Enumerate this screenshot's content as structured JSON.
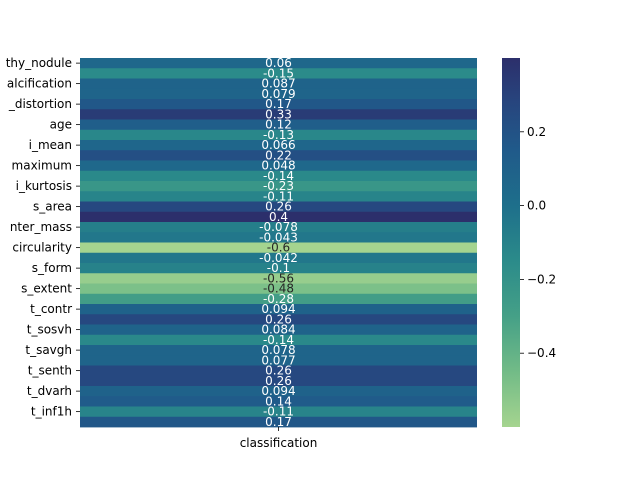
{
  "chart_data": {
    "type": "heatmap",
    "title": "",
    "xlabel": "",
    "ylabel": "",
    "columns": [
      "classification"
    ],
    "rows": [
      {
        "label": "thy_nodule",
        "value": 0.06,
        "text": "0.06"
      },
      {
        "label": "",
        "value": -0.15,
        "text": "-0.15"
      },
      {
        "label": "alcification",
        "value": 0.087,
        "text": "0.087"
      },
      {
        "label": "",
        "value": 0.079,
        "text": "0.079"
      },
      {
        "label": "_distortion",
        "value": 0.17,
        "text": "0.17"
      },
      {
        "label": "",
        "value": 0.33,
        "text": "0.33"
      },
      {
        "label": "age",
        "value": 0.12,
        "text": "0.12"
      },
      {
        "label": "",
        "value": -0.13,
        "text": "-0.13"
      },
      {
        "label": "i_mean",
        "value": 0.066,
        "text": "0.066"
      },
      {
        "label": "",
        "value": 0.22,
        "text": "0.22"
      },
      {
        "label": "maximum",
        "value": 0.048,
        "text": "0.048"
      },
      {
        "label": "",
        "value": -0.14,
        "text": "-0.14"
      },
      {
        "label": "i_kurtosis",
        "value": -0.23,
        "text": "-0.23"
      },
      {
        "label": "",
        "value": -0.11,
        "text": "-0.11"
      },
      {
        "label": "s_area",
        "value": 0.26,
        "text": "0.26"
      },
      {
        "label": "",
        "value": 0.4,
        "text": "0.4"
      },
      {
        "label": "nter_mass",
        "value": -0.078,
        "text": "-0.078"
      },
      {
        "label": "",
        "value": -0.043,
        "text": "-0.043"
      },
      {
        "label": "circularity",
        "value": -0.6,
        "text": "-0.6"
      },
      {
        "label": "",
        "value": -0.042,
        "text": "-0.042"
      },
      {
        "label": "s_form",
        "value": -0.1,
        "text": "-0.1"
      },
      {
        "label": "",
        "value": -0.56,
        "text": "-0.56"
      },
      {
        "label": "s_extent",
        "value": -0.48,
        "text": "-0.48"
      },
      {
        "label": "",
        "value": -0.28,
        "text": "-0.28"
      },
      {
        "label": "t_contr",
        "value": 0.094,
        "text": "0.094"
      },
      {
        "label": "",
        "value": 0.26,
        "text": "0.26"
      },
      {
        "label": "t_sosvh",
        "value": 0.084,
        "text": "0.084"
      },
      {
        "label": "",
        "value": -0.14,
        "text": "-0.14"
      },
      {
        "label": "t_savgh",
        "value": 0.078,
        "text": "0.078"
      },
      {
        "label": "",
        "value": 0.077,
        "text": "0.077"
      },
      {
        "label": "t_senth",
        "value": 0.26,
        "text": "0.26"
      },
      {
        "label": "",
        "value": 0.26,
        "text": "0.26"
      },
      {
        "label": "t_dvarh",
        "value": 0.094,
        "text": "0.094"
      },
      {
        "label": "",
        "value": 0.14,
        "text": "0.14"
      },
      {
        "label": "t_inf1h",
        "value": -0.11,
        "text": "-0.11"
      },
      {
        "label": "",
        "value": 0.17,
        "text": "0.17"
      }
    ],
    "colorbar": {
      "vmin": -0.6,
      "vmax": 0.4,
      "ticks": [
        0.2,
        0.0,
        -0.2,
        -0.4
      ],
      "tick_labels": [
        "0.2",
        "0.0",
        "−0.2",
        "−0.4"
      ],
      "colormap": "crest",
      "color_stops": [
        {
          "v": -0.6,
          "color": "#a5d48f"
        },
        {
          "v": -0.45,
          "color": "#72bb87"
        },
        {
          "v": -0.3,
          "color": "#45a087"
        },
        {
          "v": -0.15,
          "color": "#2b8b8a"
        },
        {
          "v": 0.0,
          "color": "#1e6f8b"
        },
        {
          "v": 0.15,
          "color": "#205a8a"
        },
        {
          "v": 0.28,
          "color": "#27457e"
        },
        {
          "v": 0.4,
          "color": "#2c2f6b"
        }
      ]
    }
  }
}
